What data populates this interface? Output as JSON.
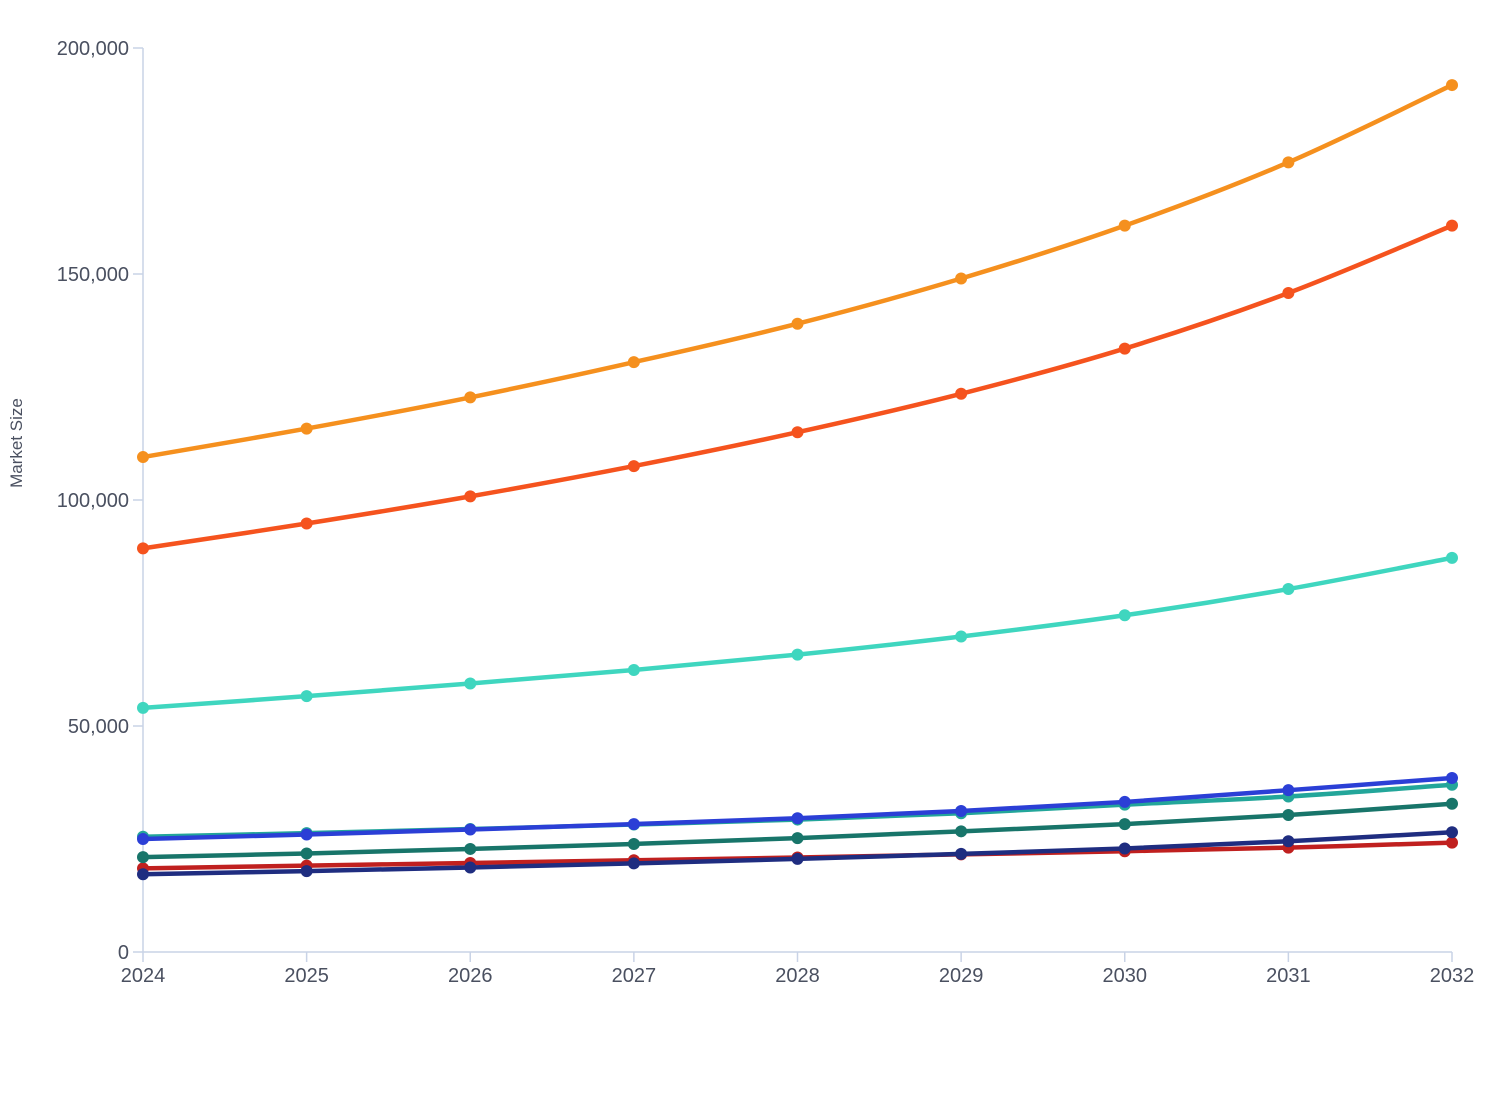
{
  "chart_data": {
    "type": "line",
    "title": "",
    "xlabel": "",
    "ylabel": "Market Size",
    "x": [
      "2024",
      "2025",
      "2026",
      "2027",
      "2028",
      "2029",
      "2030",
      "2031",
      "2032"
    ],
    "ylim": [
      0,
      200000
    ],
    "yticks": [
      0,
      50000,
      100000,
      150000,
      200000
    ],
    "ytick_labels": [
      "0",
      "50,000",
      "100,000",
      "150,000",
      "200,000"
    ],
    "grid": false,
    "legend": "none",
    "series": [
      {
        "name": "series-orange",
        "color": "#f5901e",
        "values": [
          109500,
          115800,
          122700,
          130500,
          139000,
          149000,
          160700,
          174700,
          191800
        ]
      },
      {
        "name": "series-red-orange",
        "color": "#f5531e",
        "values": [
          89300,
          94800,
          100800,
          107500,
          115000,
          123500,
          133500,
          145800,
          160700
        ]
      },
      {
        "name": "series-turquoise",
        "color": "#3fd6bf",
        "values": [
          54000,
          56600,
          59400,
          62400,
          65800,
          69800,
          74500,
          80300,
          87200
        ]
      },
      {
        "name": "series-blue",
        "color": "#2b3fd6",
        "values": [
          25000,
          26000,
          27100,
          28300,
          29600,
          31200,
          33200,
          35800,
          38500
        ]
      },
      {
        "name": "series-teal",
        "color": "#23a69a",
        "values": [
          25500,
          26300,
          27200,
          28200,
          29300,
          30700,
          32600,
          34400,
          37000
        ]
      },
      {
        "name": "series-dark-green",
        "color": "#18756a",
        "values": [
          21000,
          21800,
          22800,
          23900,
          25200,
          26700,
          28300,
          30300,
          32800
        ]
      },
      {
        "name": "series-navy",
        "color": "#1f2d80",
        "values": [
          17200,
          17900,
          18700,
          19600,
          20600,
          21700,
          22900,
          24500,
          26500
        ]
      },
      {
        "name": "series-crimson",
        "color": "#c0201f",
        "values": [
          18500,
          19100,
          19700,
          20300,
          20900,
          21600,
          22300,
          23100,
          24200
        ]
      }
    ]
  }
}
